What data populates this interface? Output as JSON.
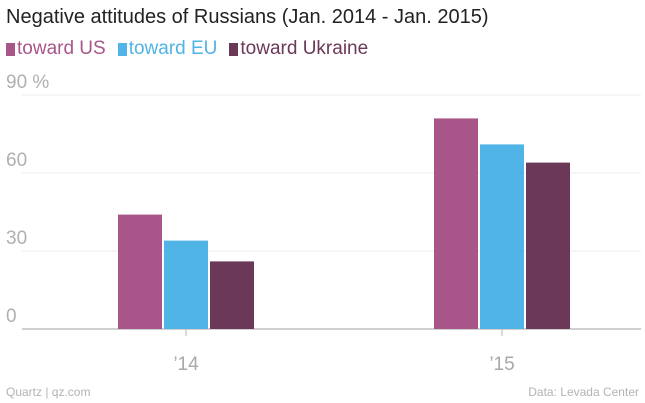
{
  "header": {
    "title": "Negative attitudes of Russians (Jan. 2014 - Jan. 2015)"
  },
  "footer": {
    "source_left": "Quartz | qz.com",
    "source_right": "Data: Levada Center"
  },
  "chart_data": {
    "type": "bar",
    "title": "Negative attitudes of Russians (Jan. 2014 - Jan. 2015)",
    "categories": [
      "’14",
      "’15"
    ],
    "series": [
      {
        "name": "toward US",
        "color": "#a8568a",
        "values": [
          44,
          81
        ]
      },
      {
        "name": "toward EU",
        "color": "#51b4e6",
        "values": [
          34,
          71
        ]
      },
      {
        "name": "toward Ukraine",
        "color": "#6b3857",
        "values": [
          26,
          64
        ]
      }
    ],
    "y_ticks": [
      {
        "value": 0,
        "label": "0"
      },
      {
        "value": 30,
        "label": "30"
      },
      {
        "value": 60,
        "label": "60"
      },
      {
        "value": 90,
        "label": "90 %"
      }
    ],
    "ylim": [
      0,
      90
    ],
    "xlabel": "",
    "ylabel": "",
    "grid": true,
    "legend": "top-left"
  }
}
